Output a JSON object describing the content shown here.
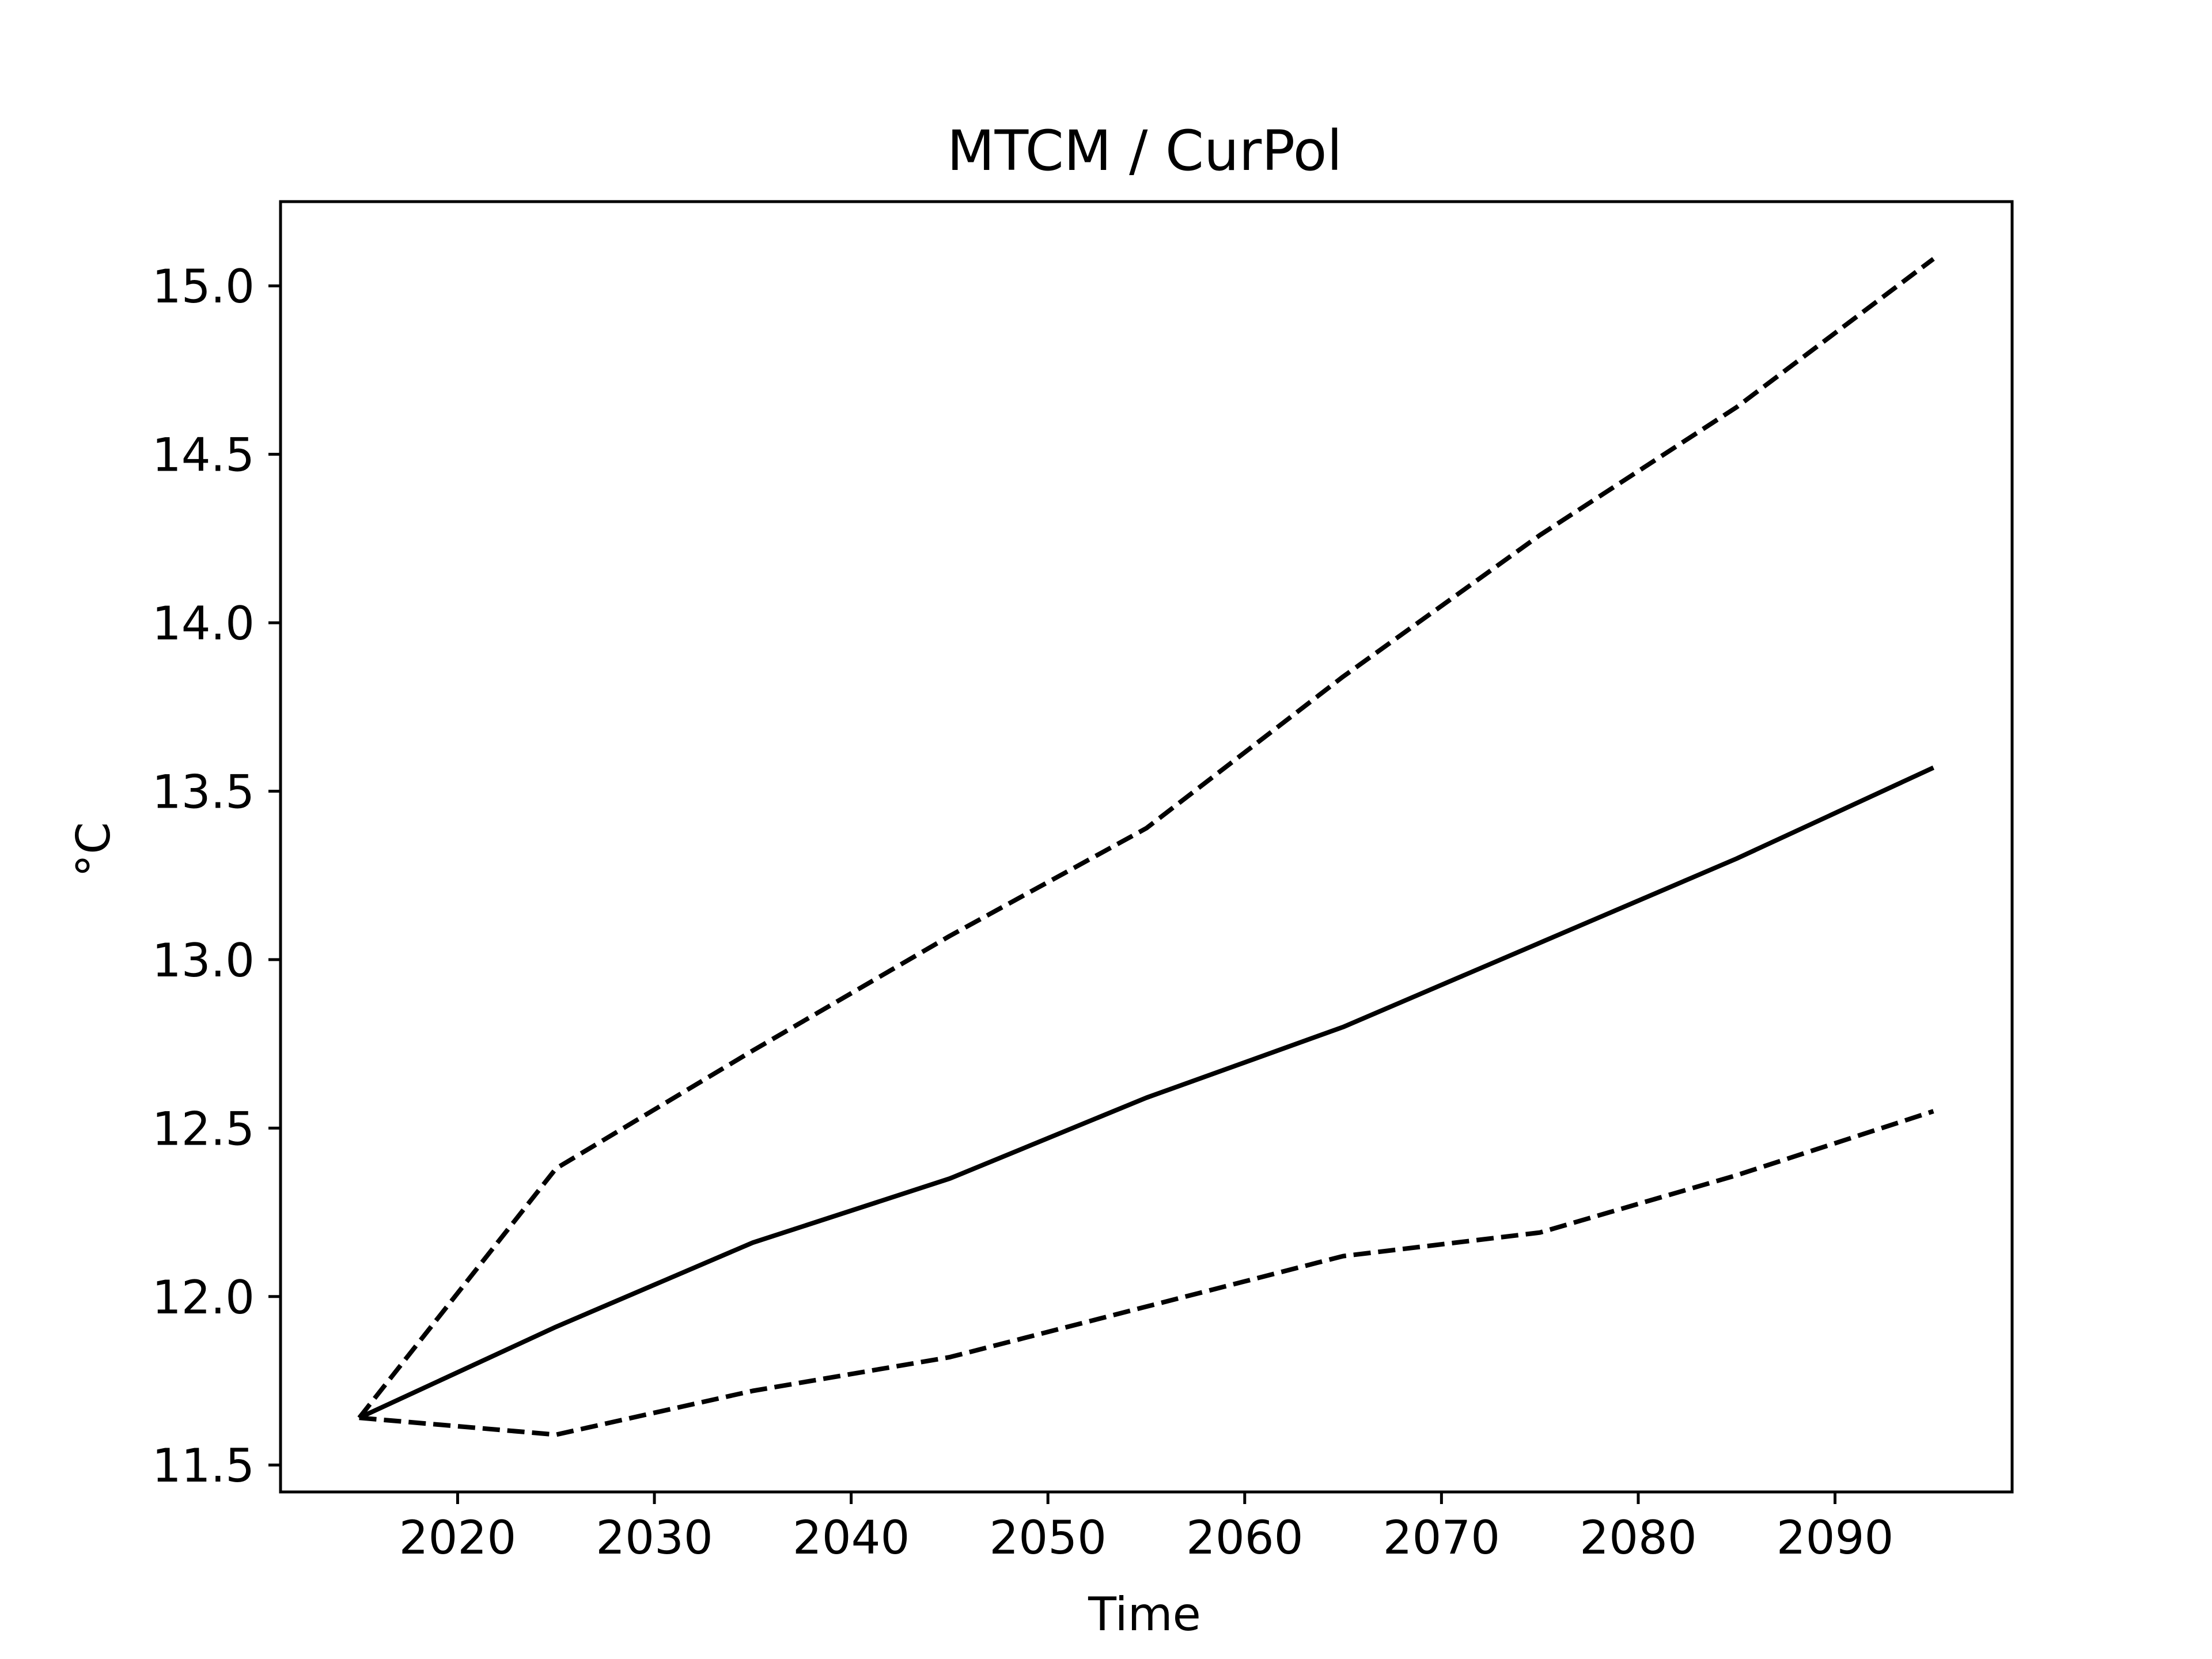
{
  "chart_data": {
    "type": "line",
    "title": "MTCM / CurPol",
    "xlabel": "Time",
    "ylabel": "°C",
    "x": [
      2015,
      2025,
      2035,
      2045,
      2055,
      2065,
      2075,
      2085,
      2095
    ],
    "xlim": [
      2011,
      2099
    ],
    "ylim": [
      11.42,
      15.25
    ],
    "xticks": [
      2020,
      2030,
      2040,
      2050,
      2060,
      2070,
      2080,
      2090
    ],
    "xtick_labels": [
      "2020",
      "2030",
      "2040",
      "2050",
      "2060",
      "2070",
      "2080",
      "2090"
    ],
    "yticks": [
      11.5,
      12.0,
      12.5,
      13.0,
      13.5,
      14.0,
      14.5,
      15.0
    ],
    "ytick_labels": [
      "11.5",
      "12.0",
      "12.5",
      "13.0",
      "13.5",
      "14.0",
      "14.5",
      "15.0"
    ],
    "grid": false,
    "series": [
      {
        "style": "dashed",
        "color": "#000000",
        "values": [
          11.64,
          12.38,
          12.73,
          13.07,
          13.39,
          13.84,
          14.26,
          14.64,
          15.08
        ]
      },
      {
        "style": "solid",
        "color": "#000000",
        "values": [
          11.64,
          11.91,
          12.16,
          12.35,
          12.59,
          12.8,
          13.05,
          13.3,
          13.57
        ]
      },
      {
        "style": "dashed",
        "color": "#000000",
        "values": [
          11.64,
          11.59,
          11.72,
          11.82,
          11.97,
          12.12,
          12.19,
          12.36,
          12.55
        ]
      }
    ]
  }
}
